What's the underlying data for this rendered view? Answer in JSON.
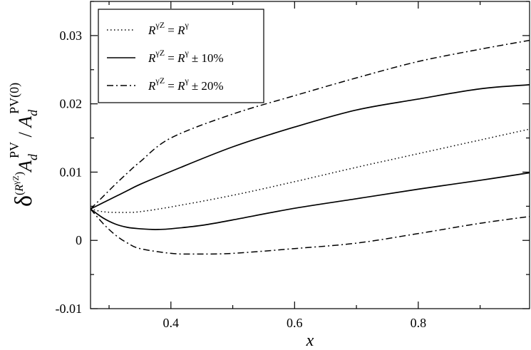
{
  "chart_data": {
    "type": "line",
    "xlabel": "x",
    "ylabel": {
      "delta": "δ",
      "paren_open": "(",
      "R": "R",
      "gammaZ": "γZ",
      "paren_close": ")",
      "A": "A",
      "d": "d",
      "PV": "PV",
      "slash": " / ",
      "PV0": "PV(0)"
    },
    "xlim": [
      0.27,
      0.98
    ],
    "ylim": [
      -0.01,
      0.035
    ],
    "x_ticks": [
      0.4,
      0.6,
      0.8
    ],
    "y_ticks": [
      -0.01,
      0,
      0.01,
      0.02,
      0.03
    ],
    "x_tick_labels": [
      "0.4",
      "0.6",
      "0.8"
    ],
    "y_tick_labels": [
      "-0.01",
      "0",
      "0.01",
      "0.02",
      "0.03"
    ],
    "grid": false,
    "legend_position": "top-left",
    "legend": [
      {
        "lhs": "R",
        "lhs_sup": "γZ",
        "eq": " = ",
        "rhs": "R",
        "rhs_sup": "γ",
        "suffix": "",
        "style": "dotted"
      },
      {
        "lhs": "R",
        "lhs_sup": "γZ",
        "eq": " = ",
        "rhs": "R",
        "rhs_sup": "γ",
        "suffix": "± 10%",
        "style": "solid"
      },
      {
        "lhs": "R",
        "lhs_sup": "γZ",
        "eq": " = ",
        "rhs": "R",
        "rhs_sup": "γ",
        "suffix": "± 20%",
        "style": "dashdot"
      }
    ],
    "series": [
      {
        "style": "dotted",
        "x": [
          0.27,
          0.29,
          0.31,
          0.33,
          0.35,
          0.4,
          0.5,
          0.6,
          0.7,
          0.8,
          0.9,
          0.98
        ],
        "y": [
          0.0046,
          0.0042,
          0.0041,
          0.0041,
          0.0042,
          0.0049,
          0.0066,
          0.0086,
          0.0107,
          0.0127,
          0.0147,
          0.0163
        ]
      },
      {
        "style": "solid",
        "x": [
          0.27,
          0.29,
          0.31,
          0.33,
          0.35,
          0.4,
          0.5,
          0.6,
          0.7,
          0.8,
          0.9,
          0.98
        ],
        "y": [
          0.0046,
          0.0055,
          0.0064,
          0.0073,
          0.0082,
          0.0101,
          0.0137,
          0.0166,
          0.0191,
          0.0207,
          0.0222,
          0.0228
        ]
      },
      {
        "style": "solid",
        "x": [
          0.27,
          0.29,
          0.31,
          0.33,
          0.35,
          0.37,
          0.38,
          0.4,
          0.45,
          0.5,
          0.6,
          0.7,
          0.8,
          0.9,
          0.98
        ],
        "y": [
          0.0046,
          0.0033,
          0.0024,
          0.0019,
          0.0017,
          0.0016,
          0.0016,
          0.0017,
          0.0022,
          0.003,
          0.0047,
          0.0061,
          0.0075,
          0.0088,
          0.0099
        ]
      },
      {
        "style": "dashdot",
        "x": [
          0.27,
          0.29,
          0.31,
          0.33,
          0.35,
          0.4,
          0.5,
          0.6,
          0.7,
          0.8,
          0.9,
          0.98
        ],
        "y": [
          0.0046,
          0.0064,
          0.0082,
          0.0099,
          0.0115,
          0.015,
          0.0185,
          0.0212,
          0.0238,
          0.0262,
          0.028,
          0.0293
        ]
      },
      {
        "style": "dashdot",
        "x": [
          0.27,
          0.29,
          0.31,
          0.33,
          0.35,
          0.4,
          0.44,
          0.5,
          0.6,
          0.7,
          0.8,
          0.9,
          0.98
        ],
        "y": [
          0.0046,
          0.0025,
          0.0008,
          -0.0004,
          -0.0012,
          -0.0019,
          -0.002,
          -0.0019,
          -0.0012,
          -0.0004,
          0.001,
          0.0025,
          0.0035
        ]
      }
    ]
  }
}
